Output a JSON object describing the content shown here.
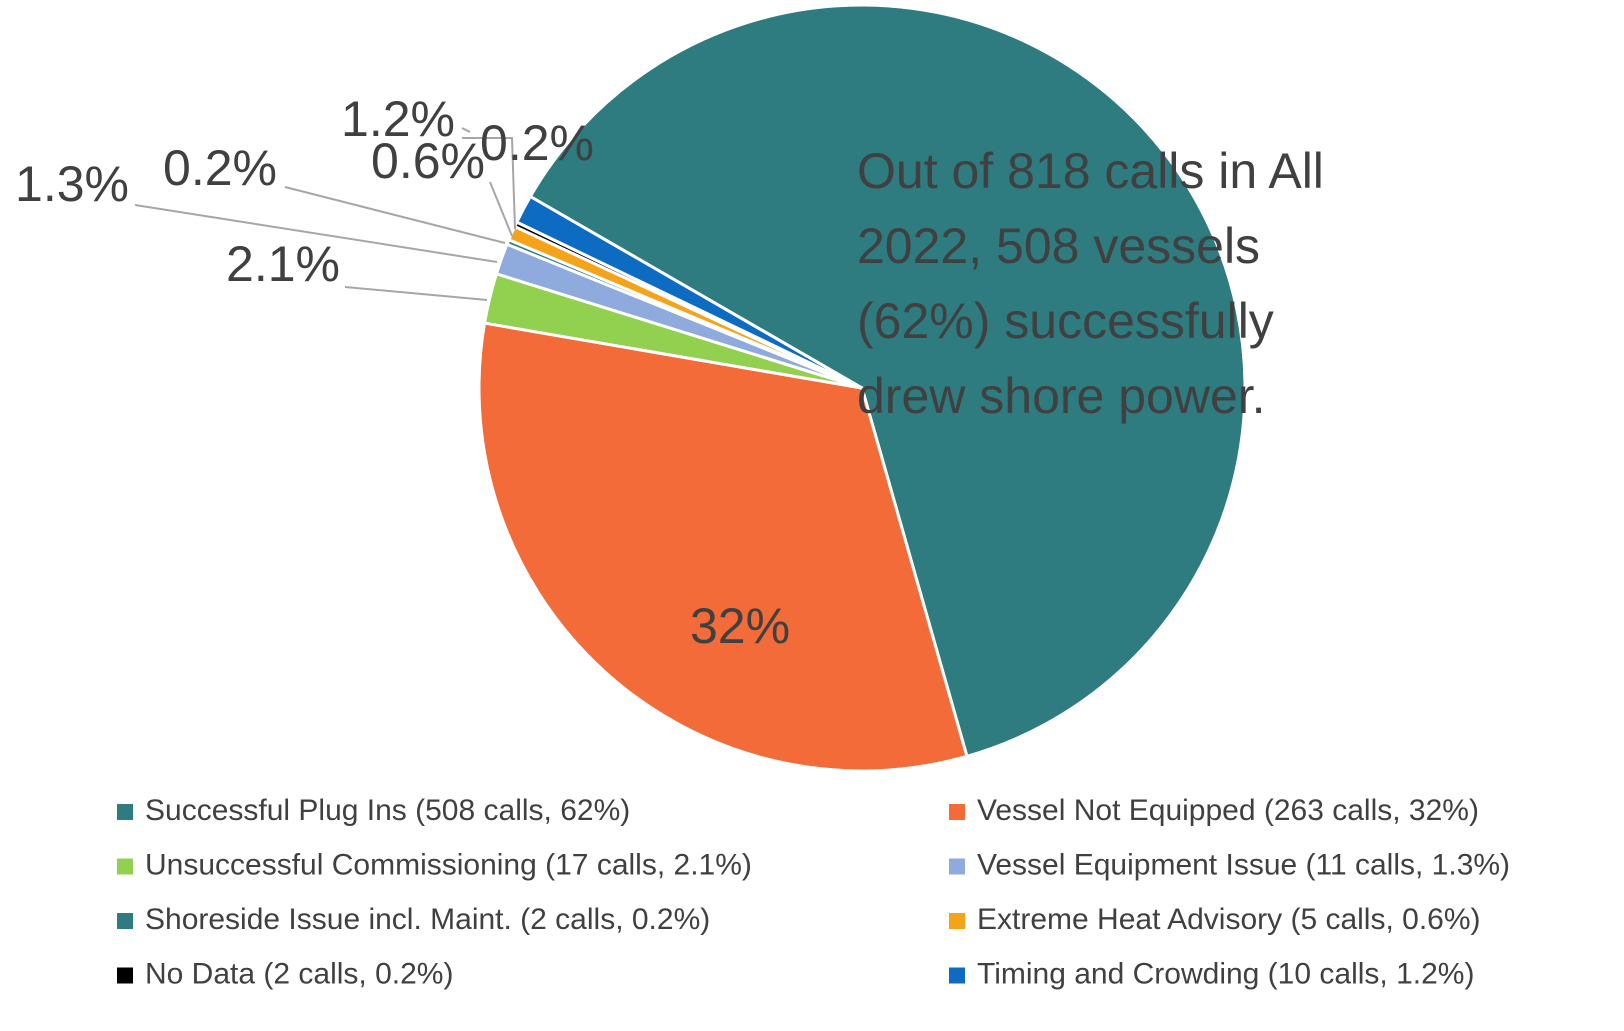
{
  "chart_data": {
    "type": "pie",
    "annotation": [
      "Out of 818 calls in All",
      "2022, 508 vessels",
      "(62%) successfully",
      "drew shore power."
    ],
    "categories": [
      "Successful Plug Ins (508 calls, 62%)",
      "Vessel Not Equipped (263 calls, 32%)",
      "Unsuccessful Commissioning (17 calls, 2.1%)",
      "Vessel Equipment Issue (11 calls, 1.3%)",
      "Shoreside Issue incl. Maint. (2 calls, 0.2%)",
      "Extreme Heat Advisory (5 calls, 0.6%)",
      "No Data (2 calls, 0.2%)",
      "Timing and Crowding (10 calls, 1.2%)"
    ],
    "values": [
      62,
      32,
      2.1,
      1.3,
      0.2,
      0.6,
      0.2,
      1.2
    ],
    "value_labels": [
      null,
      "32%",
      "2.1%",
      "1.3%",
      "0.2%",
      "0.6%",
      "0.2%",
      "1.2%"
    ],
    "colors": [
      "#2e7b80",
      "#f26b38",
      "#92d050",
      "#8faadc",
      "#2e7b80",
      "#f5a31b",
      "#000000",
      "#0e6bc2"
    ],
    "start_angle": 300,
    "legend": "bottom"
  }
}
